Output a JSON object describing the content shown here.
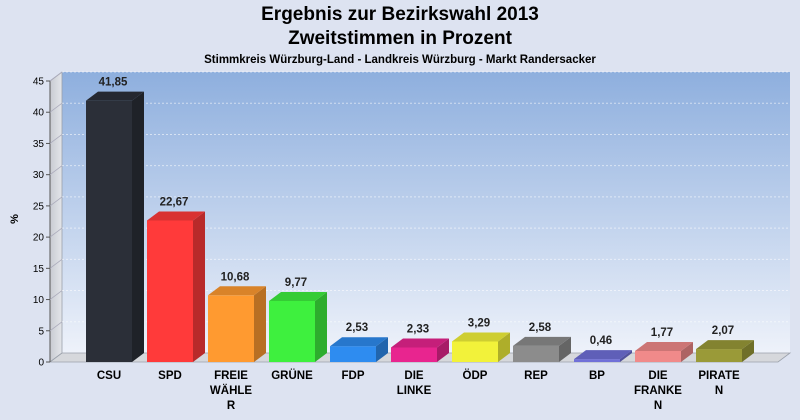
{
  "chart_data": {
    "type": "bar",
    "title": "Ergebnis zur Bezirkswahl 2013",
    "subtitle": "Zweitstimmen in Prozent",
    "caption": "Stimmkreis Würzburg-Land - Landkreis Würzburg - Markt Randersacker",
    "xlabel": "",
    "ylabel": "%",
    "ylim": [
      0,
      45
    ],
    "yticks": [
      0,
      5,
      10,
      15,
      20,
      25,
      30,
      35,
      40,
      45
    ],
    "grid": true,
    "categories": [
      [
        "CSU"
      ],
      [
        "SPD"
      ],
      [
        "FREIE",
        "WÄHLE",
        "R"
      ],
      [
        "GRÜNE"
      ],
      [
        "FDP"
      ],
      [
        "DIE",
        "LINKE"
      ],
      [
        "ÖDP"
      ],
      [
        "REP"
      ],
      [
        "BP"
      ],
      [
        "DIE",
        "FRANKE",
        "N"
      ],
      [
        "PIRATE",
        "N"
      ]
    ],
    "values": [
      41.85,
      22.67,
      10.68,
      9.77,
      2.53,
      2.33,
      3.29,
      2.58,
      0.46,
      1.77,
      2.07
    ],
    "value_labels": [
      "41,85",
      "22,67",
      "10,68",
      "9,77",
      "2,53",
      "2,33",
      "3,29",
      "2,58",
      "0,46",
      "1,77",
      "2,07"
    ],
    "colors": [
      "#2b2f38",
      "#ff3a3a",
      "#ff9a30",
      "#3ef03e",
      "#2e8cf0",
      "#e8258f",
      "#f2f23a",
      "#8c8c8c",
      "#7070d8",
      "#f08a8a",
      "#9a9a38"
    ]
  }
}
